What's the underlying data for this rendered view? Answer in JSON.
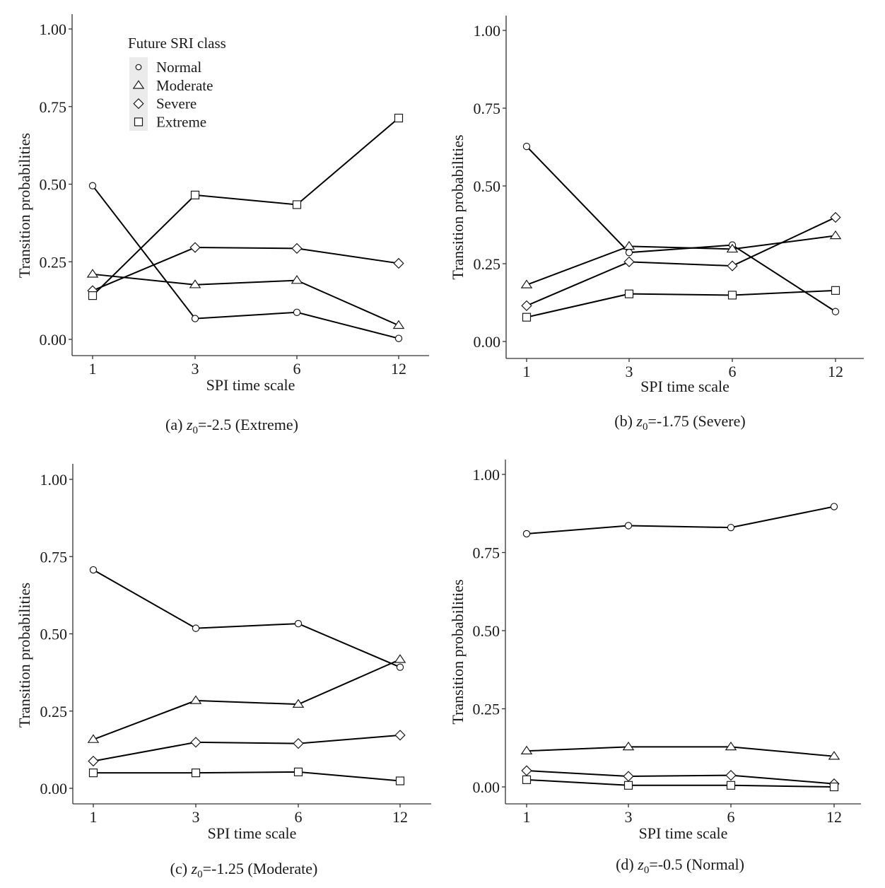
{
  "chart_data": [
    {
      "type": "line",
      "panel": "a",
      "caption_prefix": "(a) ",
      "caption_var": "z",
      "caption_sub": "0",
      "caption_suffix": "=-2.5 (Extreme)",
      "xlabel": "SPI time scale",
      "ylabel": "Transition probabilities",
      "categories": [
        "1",
        "3",
        "6",
        "12"
      ],
      "ylim": [
        0,
        1
      ],
      "yticks": [
        "0.00",
        "0.25",
        "0.50",
        "0.75",
        "1.00"
      ],
      "grid": false,
      "legend": {
        "title": "Future SRI class",
        "placement": "top-left",
        "entries": [
          {
            "label": "Normal",
            "marker": "circle-icon"
          },
          {
            "label": "Moderate",
            "marker": "triangle-icon"
          },
          {
            "label": "Severe",
            "marker": "diamond-icon"
          },
          {
            "label": "Extreme",
            "marker": "square-icon"
          }
        ]
      },
      "series": [
        {
          "name": "Normal",
          "marker": "circle",
          "values": [
            0.495,
            0.067,
            0.087,
            0.003
          ]
        },
        {
          "name": "Moderate",
          "marker": "triangle",
          "values": [
            0.21,
            0.176,
            0.19,
            0.045
          ]
        },
        {
          "name": "Severe",
          "marker": "diamond",
          "values": [
            0.157,
            0.296,
            0.293,
            0.245
          ]
        },
        {
          "name": "Extreme",
          "marker": "square",
          "values": [
            0.141,
            0.465,
            0.434,
            0.713
          ]
        }
      ]
    },
    {
      "type": "line",
      "panel": "b",
      "caption_prefix": "(b) ",
      "caption_var": "z",
      "caption_sub": "0",
      "caption_suffix": "=-1.75 (Severe)",
      "xlabel": "SPI time scale",
      "ylabel": "Transition probabilities",
      "categories": [
        "1",
        "3",
        "6",
        "12"
      ],
      "ylim": [
        0,
        1
      ],
      "yticks": [
        "0.00",
        "0.25",
        "0.50",
        "0.75",
        "1.00"
      ],
      "grid": false,
      "series": [
        {
          "name": "Normal",
          "marker": "circle",
          "values": [
            0.627,
            0.286,
            0.31,
            0.096
          ]
        },
        {
          "name": "Moderate",
          "marker": "triangle",
          "values": [
            0.182,
            0.306,
            0.297,
            0.34
          ]
        },
        {
          "name": "Severe",
          "marker": "diamond",
          "values": [
            0.115,
            0.256,
            0.243,
            0.399
          ]
        },
        {
          "name": "Extreme",
          "marker": "square",
          "values": [
            0.078,
            0.153,
            0.149,
            0.164
          ]
        }
      ]
    },
    {
      "type": "line",
      "panel": "c",
      "caption_prefix": "(c) ",
      "caption_var": "z",
      "caption_sub": "0",
      "caption_suffix": "=-1.25 (Moderate)",
      "xlabel": "SPI time scale",
      "ylabel": "Transition probabilities",
      "categories": [
        "1",
        "3",
        "6",
        "12"
      ],
      "ylim": [
        0,
        1
      ],
      "yticks": [
        "0.00",
        "0.25",
        "0.50",
        "0.75",
        "1.00"
      ],
      "grid": false,
      "series": [
        {
          "name": "Normal",
          "marker": "circle",
          "values": [
            0.707,
            0.518,
            0.533,
            0.392
          ]
        },
        {
          "name": "Moderate",
          "marker": "triangle",
          "values": [
            0.158,
            0.284,
            0.272,
            0.417
          ]
        },
        {
          "name": "Severe",
          "marker": "diamond",
          "values": [
            0.088,
            0.149,
            0.145,
            0.172
          ]
        },
        {
          "name": "Extreme",
          "marker": "square",
          "values": [
            0.05,
            0.05,
            0.053,
            0.024
          ]
        }
      ]
    },
    {
      "type": "line",
      "panel": "d",
      "caption_prefix": "(d) ",
      "caption_var": "z",
      "caption_sub": "0",
      "caption_suffix": "=-0.5 (Normal)",
      "xlabel": "SPI time scale",
      "ylabel": "Transition probabilities",
      "categories": [
        "1",
        "3",
        "6",
        "12"
      ],
      "ylim": [
        0,
        1
      ],
      "yticks": [
        "0.00",
        "0.25",
        "0.50",
        "0.75",
        "1.00"
      ],
      "grid": false,
      "series": [
        {
          "name": "Normal",
          "marker": "circle",
          "values": [
            0.81,
            0.836,
            0.83,
            0.897
          ]
        },
        {
          "name": "Moderate",
          "marker": "triangle",
          "values": [
            0.115,
            0.128,
            0.128,
            0.098
          ]
        },
        {
          "name": "Severe",
          "marker": "diamond",
          "values": [
            0.052,
            0.034,
            0.037,
            0.01
          ]
        },
        {
          "name": "Extreme",
          "marker": "square",
          "values": [
            0.023,
            0.005,
            0.005,
            0.0
          ]
        }
      ]
    }
  ]
}
